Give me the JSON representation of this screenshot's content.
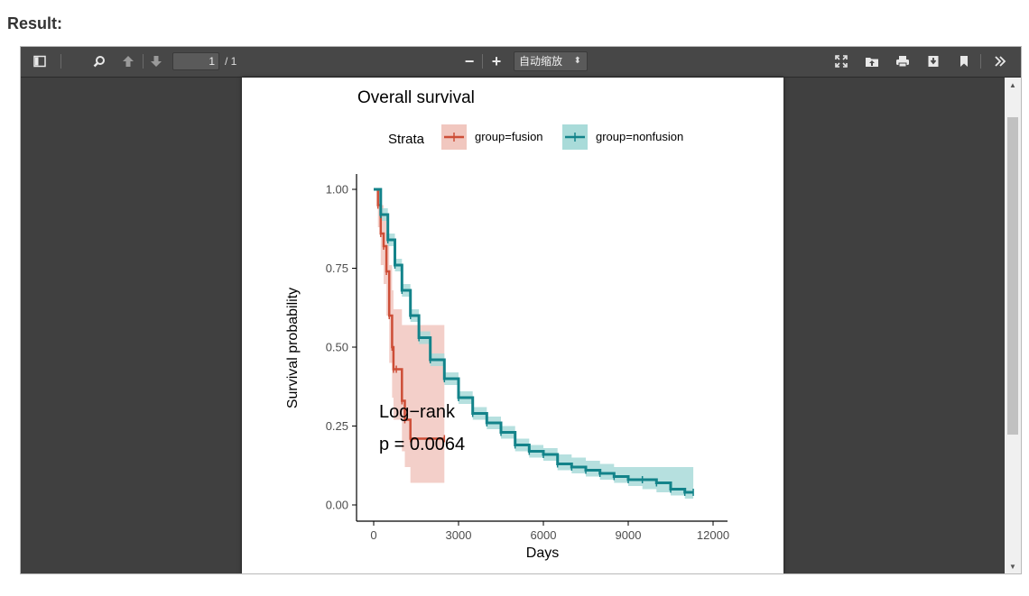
{
  "result_label": "Result:",
  "toolbar": {
    "page_number": "1",
    "page_count": "/ 1",
    "zoom_value": "自动缩放",
    "icons": [
      "sidebar-toggle-icon",
      "search-icon",
      "previous-page-icon",
      "next-page-icon",
      "zoom-out-icon",
      "zoom-in-icon",
      "presentation-mode-icon",
      "open-file-icon",
      "print-icon",
      "download-icon",
      "bookmark-icon",
      "tools-icon"
    ],
    "zoom_out_glyph": "−",
    "zoom_in_glyph": "+"
  },
  "chart_data": {
    "type": "line",
    "title": "Overall survival",
    "legend_title": "Strata",
    "legend_position": "top",
    "xlabel": "Days",
    "ylabel": "Survival probability",
    "xlim": [
      0,
      12000
    ],
    "ylim": [
      0,
      1
    ],
    "xticks": [
      "0",
      "3000",
      "6000",
      "9000",
      "12000"
    ],
    "yticks": [
      "0.00",
      "0.25",
      "0.50",
      "0.75",
      "1.00"
    ],
    "annotation_line1": "Log−rank",
    "annotation_line2": "p = 0.0064",
    "colors": {
      "fusion": "#cd4e37",
      "fusion_ci": "#f1c7bf",
      "nonfusion": "#13838a",
      "nonfusion_ci": "#a9dbd9"
    },
    "series": [
      {
        "name": "group=fusion",
        "x": [
          0,
          150,
          250,
          350,
          450,
          550,
          650,
          700,
          800,
          1000,
          1100,
          1300,
          2500
        ],
        "y": [
          1.0,
          0.95,
          0.86,
          0.82,
          0.74,
          0.6,
          0.5,
          0.43,
          0.43,
          0.33,
          0.27,
          0.21,
          0.21
        ],
        "ci_upper": [
          1.0,
          1.0,
          0.95,
          0.92,
          0.86,
          0.76,
          0.68,
          0.62,
          0.62,
          0.57,
          0.57,
          0.57,
          0.57
        ],
        "ci_lower": [
          1.0,
          0.88,
          0.76,
          0.7,
          0.6,
          0.45,
          0.34,
          0.27,
          0.27,
          0.17,
          0.12,
          0.07,
          0.07
        ]
      },
      {
        "name": "group=nonfusion",
        "x": [
          0,
          250,
          500,
          750,
          1000,
          1300,
          1600,
          2000,
          2500,
          3000,
          3500,
          4000,
          4500,
          5000,
          5500,
          6000,
          6500,
          7000,
          7500,
          8000,
          8500,
          9000,
          9500,
          10000,
          10500,
          11000,
          11300
        ],
        "y": [
          1.0,
          0.92,
          0.84,
          0.76,
          0.68,
          0.6,
          0.53,
          0.46,
          0.4,
          0.34,
          0.29,
          0.26,
          0.23,
          0.19,
          0.17,
          0.16,
          0.13,
          0.12,
          0.11,
          0.1,
          0.09,
          0.08,
          0.08,
          0.07,
          0.05,
          0.04,
          0.04
        ],
        "ci_upper": [
          1.0,
          0.94,
          0.86,
          0.78,
          0.7,
          0.62,
          0.55,
          0.48,
          0.42,
          0.36,
          0.31,
          0.28,
          0.25,
          0.21,
          0.19,
          0.18,
          0.16,
          0.15,
          0.14,
          0.13,
          0.12,
          0.12,
          0.12,
          0.12,
          0.12,
          0.12,
          0.12
        ],
        "ci_lower": [
          1.0,
          0.9,
          0.82,
          0.74,
          0.66,
          0.58,
          0.51,
          0.44,
          0.38,
          0.32,
          0.27,
          0.24,
          0.21,
          0.17,
          0.15,
          0.14,
          0.11,
          0.1,
          0.09,
          0.08,
          0.07,
          0.06,
          0.05,
          0.04,
          0.03,
          0.02,
          0.02
        ]
      }
    ]
  }
}
